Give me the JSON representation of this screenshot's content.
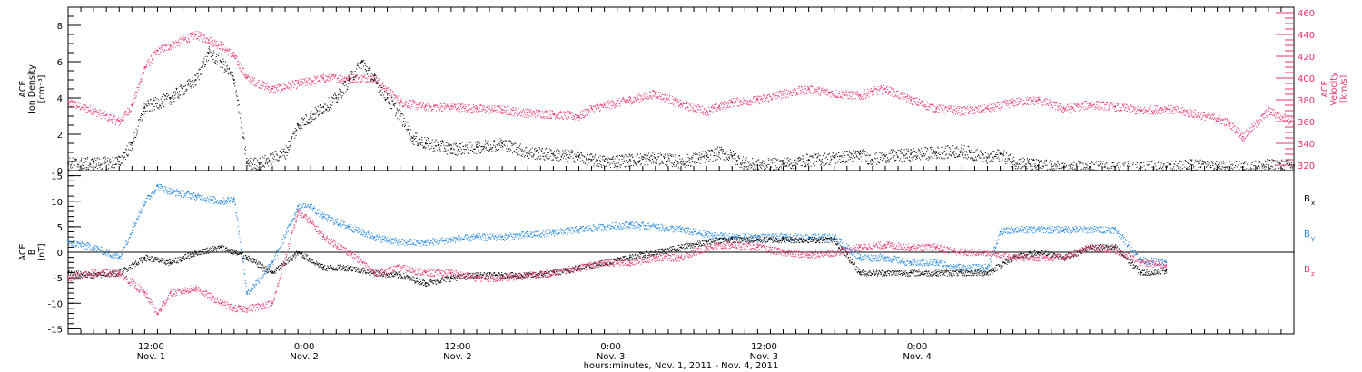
{
  "chart_data": [
    {
      "type": "scatter",
      "panel": "top",
      "ylabel_left": [
        "ACE",
        "Ion Density",
        "[cm⁻³]"
      ],
      "ylabel_right": [
        "ACE",
        "Velocity",
        "[km/s]"
      ],
      "x_range_hours": [
        0,
        96
      ],
      "ylim_left": [
        0,
        9
      ],
      "ylim_right": [
        315,
        465
      ],
      "left_ticks": [
        "0",
        "2",
        "4",
        "6",
        "8"
      ],
      "right_ticks": [
        "320",
        "340",
        "360",
        "380",
        "400",
        "420",
        "440",
        "460"
      ],
      "series": [
        {
          "name": "Ion Density",
          "axis": "left",
          "color": "#000000",
          "x": [
            0,
            2,
            4,
            5,
            6,
            8,
            10,
            11,
            12,
            13,
            14,
            15,
            17,
            18,
            19,
            20,
            21,
            22,
            23,
            24,
            25,
            26,
            27,
            28,
            29,
            30,
            32,
            34,
            36,
            38,
            40,
            41,
            42,
            44,
            46,
            48,
            50,
            51,
            52,
            53,
            54,
            56,
            58,
            60,
            62,
            63,
            64,
            66,
            68,
            70,
            72,
            73,
            74,
            76,
            78,
            80,
            82,
            84,
            86,
            88,
            90,
            92,
            94,
            96
          ],
          "y": [
            0.4,
            0.4,
            0.5,
            1.5,
            3.5,
            4,
            5,
            6.5,
            6,
            5,
            0.4,
            0.4,
            1,
            2.5,
            3,
            3.5,
            4,
            5,
            6,
            5,
            4,
            3,
            1.8,
            1.5,
            1.4,
            1.2,
            1.3,
            1.5,
            1.0,
            0.9,
            0.8,
            0.6,
            0.5,
            0.6,
            0.7,
            0.5,
            0.8,
            1.0,
            0.8,
            0.4,
            0.3,
            0.4,
            0.6,
            0.7,
            0.9,
            0.6,
            0.8,
            0.9,
            1.0,
            1.1,
            0.7,
            0.9,
            0.5,
            0.3,
            0.2,
            0.2,
            0.2,
            0.2,
            0.2,
            0.3,
            0.2,
            0.2,
            0.3,
            0.3
          ]
        },
        {
          "name": "Velocity",
          "axis": "right",
          "color": "#e8336b",
          "x": [
            0,
            2,
            4,
            5,
            6,
            7,
            8,
            10,
            11,
            12,
            13,
            14,
            16,
            18,
            20,
            22,
            24,
            26,
            28,
            30,
            32,
            34,
            36,
            38,
            40,
            41,
            42,
            44,
            46,
            48,
            50,
            51,
            52,
            54,
            56,
            58,
            60,
            62,
            63,
            64,
            66,
            68,
            70,
            72,
            74,
            76,
            78,
            80,
            82,
            84,
            86,
            88,
            90,
            91,
            92,
            94,
            96
          ],
          "y": [
            378,
            370,
            360,
            375,
            410,
            425,
            430,
            440,
            435,
            430,
            420,
            400,
            390,
            395,
            400,
            400,
            400,
            378,
            374,
            374,
            372,
            371,
            368,
            367,
            365,
            372,
            375,
            380,
            386,
            376,
            370,
            374,
            378,
            380,
            386,
            390,
            386,
            384,
            388,
            390,
            380,
            372,
            370,
            372,
            378,
            380,
            372,
            376,
            374,
            370,
            372,
            368,
            363,
            358,
            346,
            370,
            360
          ]
        }
      ]
    },
    {
      "type": "scatter",
      "panel": "bottom",
      "ylabel_left": [
        "ACE",
        "B",
        "[nT]"
      ],
      "x_range_hours": [
        0,
        96
      ],
      "ylim": [
        -16,
        16
      ],
      "left_ticks": [
        "-15",
        "-10",
        "-5",
        "0",
        "5",
        "10",
        "15"
      ],
      "zero_line": true,
      "series": [
        {
          "name": "Bx",
          "label": "B",
          "sub": "x",
          "color": "#000000",
          "x": [
            0,
            2,
            4,
            6,
            8,
            10,
            12,
            14,
            16,
            18,
            20,
            22,
            24,
            26,
            28,
            30,
            32,
            34,
            36,
            38,
            40,
            42,
            44,
            46,
            48,
            50,
            51,
            52,
            54,
            56,
            58,
            60,
            62,
            64,
            66,
            68,
            70,
            72,
            74,
            76,
            78,
            80,
            82,
            84,
            86
          ],
          "y": [
            -4,
            -4.5,
            -4,
            -1,
            -2,
            0,
            1,
            -1,
            -4,
            0,
            -3,
            -3,
            -4,
            -4.5,
            -6,
            -5,
            -4.5,
            -4.5,
            -4.5,
            -4,
            -3,
            -2,
            -1,
            0,
            1,
            2,
            2.5,
            2.5,
            2.5,
            2.5,
            2.5,
            2.5,
            -4,
            -4,
            -4,
            -4,
            -4,
            -4,
            -1,
            0,
            -1,
            1,
            1,
            -4,
            -3.5
          ]
        },
        {
          "name": "By",
          "label": "B",
          "sub": "y",
          "color": "#1f85e0",
          "x": [
            0,
            2,
            4,
            6,
            7,
            8,
            10,
            12,
            13,
            14,
            16,
            18,
            19,
            20,
            22,
            24,
            26,
            28,
            30,
            32,
            34,
            36,
            38,
            40,
            42,
            44,
            46,
            48,
            50,
            52,
            54,
            56,
            58,
            60,
            62,
            64,
            66,
            68,
            70,
            72,
            73,
            74,
            76,
            78,
            80,
            82,
            84,
            86
          ],
          "y": [
            2,
            1,
            -1,
            10,
            13,
            12,
            11,
            10,
            10.5,
            -8,
            -2,
            9,
            9,
            7,
            5,
            3,
            2,
            2,
            2.5,
            3,
            3,
            3.5,
            4,
            4.5,
            5,
            5.5,
            5,
            4.5,
            3.5,
            3,
            3,
            3,
            3,
            3,
            -1,
            -1,
            -2,
            -2,
            -3,
            -3,
            4,
            4.5,
            4.5,
            4.5,
            4.5,
            4.5,
            -1.5,
            -2
          ]
        },
        {
          "name": "Bz",
          "label": "B",
          "sub": "z",
          "color": "#e8336b",
          "x": [
            0,
            2,
            4,
            6,
            7,
            8,
            10,
            12,
            13,
            14,
            16,
            18,
            19,
            20,
            22,
            24,
            26,
            28,
            30,
            32,
            34,
            36,
            38,
            40,
            42,
            44,
            46,
            48,
            50,
            52,
            54,
            56,
            58,
            60,
            62,
            64,
            66,
            68,
            70,
            72,
            74,
            76,
            78,
            80,
            82,
            84,
            86
          ],
          "y": [
            -5,
            -4,
            -4,
            -8,
            -12,
            -8,
            -7,
            -10,
            -11,
            -11,
            -10,
            8,
            6,
            3,
            0,
            -4,
            -3,
            -4,
            -4,
            -5,
            -5,
            -4.5,
            -4,
            -3,
            -2,
            -2,
            -1,
            -1,
            1,
            1.5,
            1,
            0,
            -0.5,
            0,
            1,
            1.5,
            1,
            1,
            0,
            0,
            -1,
            -1,
            -1,
            1,
            0.5,
            -2,
            -2.5
          ]
        }
      ]
    }
  ],
  "x_axis": {
    "ticks": [
      {
        "time": "12:00",
        "day": "Nov. 1"
      },
      {
        "time": "0:00",
        "day": "Nov. 2"
      },
      {
        "time": "12:00",
        "day": "Nov. 2"
      },
      {
        "time": "0:00",
        "day": "Nov. 3"
      },
      {
        "time": "12:00",
        "day": "Nov. 3"
      },
      {
        "time": "0:00",
        "day": "Nov. 4"
      }
    ],
    "title": "hours:minutes, Nov.  1, 2011 - Nov.  4, 2011"
  }
}
